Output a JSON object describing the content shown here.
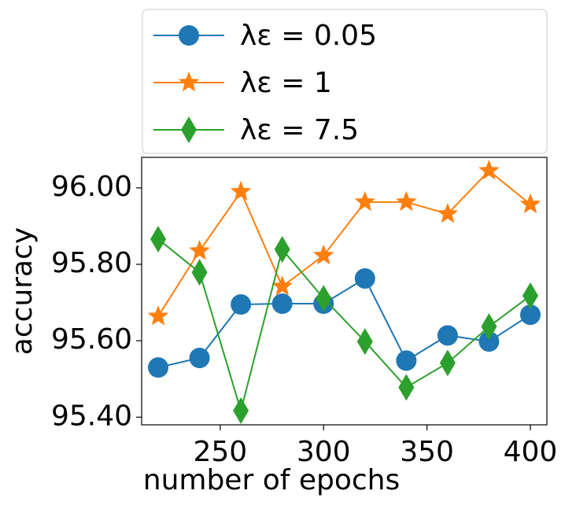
{
  "chart_data": {
    "type": "line",
    "xlabel": "number of epochs",
    "ylabel": "accuracy",
    "x": [
      220,
      240,
      260,
      280,
      300,
      320,
      340,
      360,
      380,
      400
    ],
    "series": [
      {
        "name": "λε = 0.05",
        "color": "#1f77b4",
        "marker": "circle",
        "values": [
          95.53,
          95.555,
          95.695,
          95.697,
          95.697,
          95.763,
          95.548,
          95.614,
          95.598,
          95.668
        ]
      },
      {
        "name": "λε = 1",
        "color": "#ff7f0e",
        "marker": "star",
        "values": [
          95.664,
          95.835,
          95.99,
          95.742,
          95.823,
          95.963,
          95.963,
          95.932,
          96.045,
          95.957
        ]
      },
      {
        "name": "λε = 7.5",
        "color": "#2ca02c",
        "marker": "diamond",
        "values": [
          95.866,
          95.779,
          95.417,
          95.839,
          95.711,
          95.598,
          95.478,
          95.542,
          95.637,
          95.718
        ]
      }
    ],
    "xlim": [
      212,
      408
    ],
    "ylim": [
      95.38,
      96.08
    ],
    "xticks": [
      250,
      300,
      350,
      400
    ],
    "yticks": [
      {
        "value": 95.4,
        "label": "95.40"
      },
      {
        "value": 95.6,
        "label": "95.60"
      },
      {
        "value": 95.8,
        "label": "95.80"
      },
      {
        "value": 96.0,
        "label": "96.00"
      }
    ],
    "grid": false,
    "legend": "top"
  }
}
